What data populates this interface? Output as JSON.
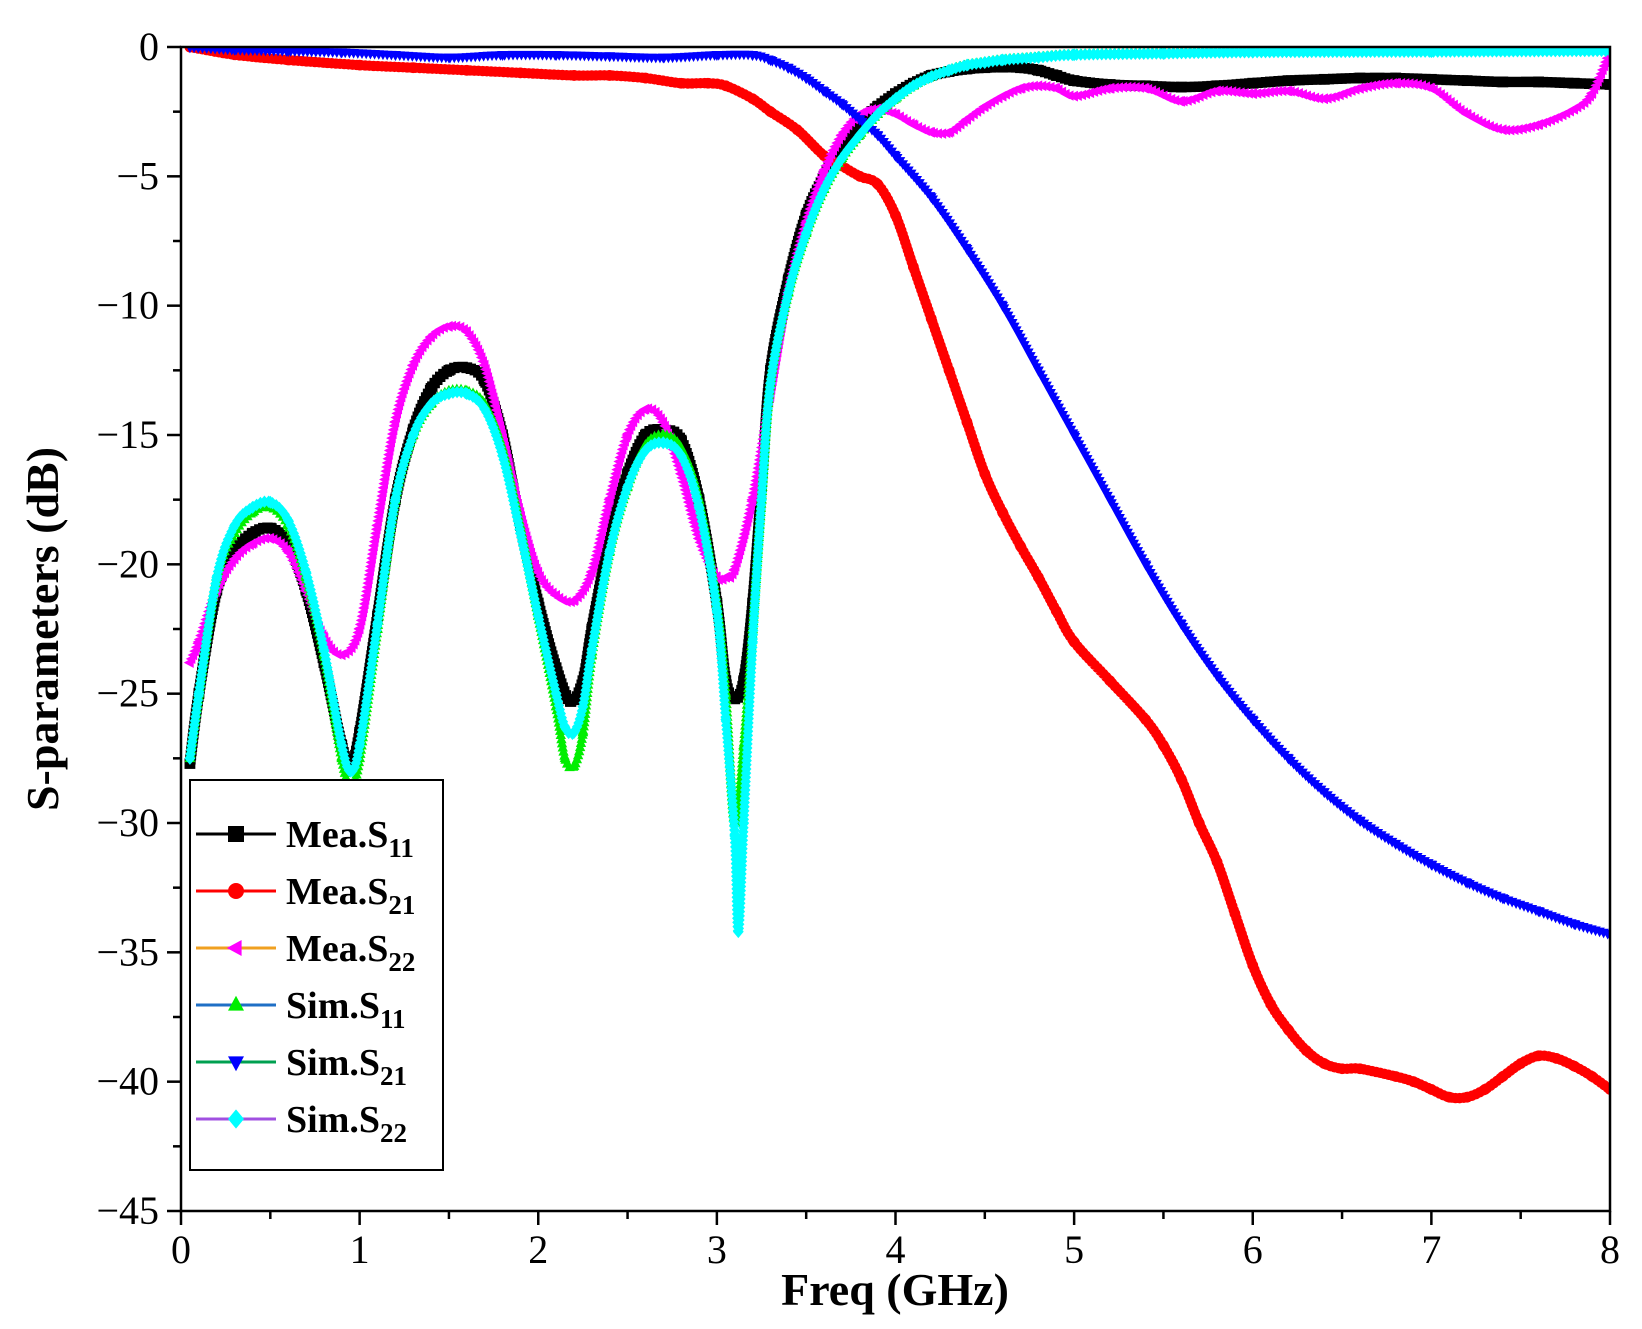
{
  "chart_data": {
    "type": "line",
    "title": "",
    "xlabel": "Freq (GHz)",
    "ylabel": "S-parameters (dB)",
    "xlim": [
      0,
      8
    ],
    "ylim": [
      -45,
      0
    ],
    "xticks": [
      0,
      1,
      2,
      3,
      4,
      5,
      6,
      7,
      8
    ],
    "yticks": [
      0,
      -5,
      -10,
      -15,
      -20,
      -25,
      -30,
      -35,
      -40,
      -45
    ],
    "xtick_labels": [
      "0",
      "1",
      "2",
      "3",
      "4",
      "5",
      "6",
      "7",
      "8"
    ],
    "ytick_labels": [
      "0",
      "−5",
      "−10",
      "−15",
      "−20",
      "−25",
      "−30",
      "−35",
      "−40",
      "−45"
    ],
    "grid": false,
    "legend_position": "bottom-left",
    "series": [
      {
        "name": "Mea.S11",
        "label_main": "Mea.S",
        "label_sub": "11",
        "line_color": "#000000",
        "marker_color": "#000000",
        "marker": "square",
        "x": [
          0.05,
          0.1,
          0.2,
          0.3,
          0.4,
          0.5,
          0.6,
          0.7,
          0.8,
          0.9,
          0.95,
          1.0,
          1.1,
          1.2,
          1.3,
          1.4,
          1.5,
          1.6,
          1.7,
          1.8,
          1.9,
          2.0,
          2.1,
          2.18,
          2.25,
          2.3,
          2.4,
          2.5,
          2.6,
          2.7,
          2.8,
          2.9,
          3.0,
          3.05,
          3.1,
          3.15,
          3.2,
          3.25,
          3.3,
          3.4,
          3.5,
          3.6,
          3.7,
          3.8,
          3.9,
          4.0,
          4.1,
          4.2,
          4.3,
          4.4,
          4.5,
          4.6,
          4.7,
          4.8,
          4.9,
          5.0,
          5.2,
          5.4,
          5.6,
          5.8,
          6.0,
          6.2,
          6.4,
          6.6,
          6.8,
          7.0,
          7.2,
          7.4,
          7.6,
          7.8,
          8.0
        ],
        "y": [
          -27.7,
          -25,
          -21,
          -19.5,
          -18.8,
          -18.6,
          -19.2,
          -21,
          -23.8,
          -27,
          -27.8,
          -26.5,
          -22,
          -17.5,
          -14.8,
          -13.2,
          -12.5,
          -12.4,
          -12.9,
          -15,
          -18.5,
          -21.5,
          -24,
          -25.3,
          -24.5,
          -22.5,
          -19,
          -16.5,
          -15,
          -14.8,
          -15.2,
          -17.5,
          -21.5,
          -24.5,
          -25.2,
          -24.5,
          -21.5,
          -17,
          -12.5,
          -9,
          -6.5,
          -5,
          -3.8,
          -2.9,
          -2.3,
          -1.8,
          -1.4,
          -1.1,
          -0.95,
          -0.85,
          -0.8,
          -0.78,
          -0.8,
          -0.9,
          -1.1,
          -1.3,
          -1.45,
          -1.5,
          -1.55,
          -1.5,
          -1.4,
          -1.3,
          -1.25,
          -1.2,
          -1.2,
          -1.25,
          -1.3,
          -1.35,
          -1.35,
          -1.4,
          -1.45
        ]
      },
      {
        "name": "Mea.S21",
        "label_main": "Mea.S",
        "label_sub": "21",
        "line_color": "#ff0000",
        "marker_color": "#ff0000",
        "marker": "circle",
        "x": [
          0.05,
          0.3,
          0.6,
          1.0,
          1.3,
          1.6,
          1.9,
          2.2,
          2.4,
          2.6,
          2.8,
          2.95,
          3.05,
          3.2,
          3.3,
          3.45,
          3.6,
          3.7,
          3.8,
          3.9,
          4.0,
          4.1,
          4.2,
          4.3,
          4.4,
          4.5,
          4.6,
          4.7,
          4.8,
          4.9,
          5.0,
          5.2,
          5.4,
          5.5,
          5.6,
          5.7,
          5.8,
          5.9,
          6.0,
          6.1,
          6.2,
          6.3,
          6.4,
          6.5,
          6.6,
          6.8,
          6.9,
          7.0,
          7.1,
          7.2,
          7.3,
          7.4,
          7.5,
          7.6,
          7.7,
          7.8,
          7.9,
          8.0
        ],
        "y": [
          0,
          -0.3,
          -0.5,
          -0.7,
          -0.8,
          -0.9,
          -1.0,
          -1.1,
          -1.1,
          -1.2,
          -1.4,
          -1.4,
          -1.5,
          -2,
          -2.5,
          -3.2,
          -4.2,
          -4.6,
          -5,
          -5.3,
          -6.5,
          -8.5,
          -10.5,
          -12.5,
          -14.5,
          -16.5,
          -18,
          -19.3,
          -20.5,
          -21.8,
          -23,
          -24.5,
          -26,
          -27,
          -28.3,
          -30,
          -31.5,
          -33.5,
          -35.5,
          -37,
          -38,
          -38.8,
          -39.3,
          -39.5,
          -39.5,
          -39.8,
          -40,
          -40.3,
          -40.6,
          -40.6,
          -40.3,
          -39.8,
          -39.3,
          -39.0,
          -39.1,
          -39.4,
          -39.8,
          -40.3
        ]
      },
      {
        "name": "Mea.S22",
        "label_main": "Mea.S",
        "label_sub": "22",
        "line_color": "#f0a020",
        "marker_color": "#ff00ff",
        "marker": "triangle-left",
        "x": [
          0.05,
          0.1,
          0.2,
          0.3,
          0.4,
          0.5,
          0.6,
          0.7,
          0.8,
          0.9,
          1.0,
          1.1,
          1.2,
          1.3,
          1.4,
          1.5,
          1.6,
          1.7,
          1.8,
          1.9,
          2.0,
          2.1,
          2.2,
          2.3,
          2.4,
          2.5,
          2.6,
          2.7,
          2.8,
          2.9,
          3.0,
          3.05,
          3.1,
          3.2,
          3.3,
          3.4,
          3.5,
          3.6,
          3.7,
          3.8,
          3.9,
          4.0,
          4.1,
          4.2,
          4.3,
          4.4,
          4.5,
          4.6,
          4.7,
          4.8,
          4.9,
          5.0,
          5.2,
          5.4,
          5.6,
          5.8,
          6.0,
          6.2,
          6.4,
          6.6,
          6.8,
          7.0,
          7.2,
          7.4,
          7.6,
          7.8,
          7.9,
          8.0
        ],
        "y": [
          -23.8,
          -23,
          -21,
          -19.8,
          -19.2,
          -19.0,
          -19.5,
          -21,
          -22.8,
          -23.5,
          -22.5,
          -18.5,
          -14.5,
          -12.3,
          -11.2,
          -10.8,
          -11.0,
          -12.3,
          -15,
          -18,
          -20.3,
          -21.2,
          -21.4,
          -20.3,
          -17.5,
          -15,
          -14.0,
          -14.5,
          -16.5,
          -19,
          -20.5,
          -20.5,
          -20.2,
          -17.5,
          -13.5,
          -9.5,
          -6.8,
          -4.8,
          -3.4,
          -2.6,
          -2.4,
          -2.6,
          -3.0,
          -3.3,
          -3.3,
          -2.8,
          -2.3,
          -1.9,
          -1.6,
          -1.5,
          -1.6,
          -1.9,
          -1.6,
          -1.6,
          -2.1,
          -1.7,
          -1.8,
          -1.7,
          -2.0,
          -1.6,
          -1.4,
          -1.6,
          -2.6,
          -3.2,
          -3.0,
          -2.4,
          -1.8,
          -0.2
        ]
      },
      {
        "name": "Sim.S11",
        "label_main": "Sim.S",
        "label_sub": "11",
        "line_color": "#1f6fc5",
        "marker_color": "#00ee00",
        "marker": "triangle-up",
        "x": [
          0.05,
          0.1,
          0.2,
          0.3,
          0.4,
          0.5,
          0.6,
          0.7,
          0.8,
          0.9,
          0.95,
          1.0,
          1.1,
          1.2,
          1.3,
          1.4,
          1.5,
          1.6,
          1.7,
          1.8,
          1.9,
          2.0,
          2.1,
          2.15,
          2.2,
          2.25,
          2.3,
          2.4,
          2.5,
          2.6,
          2.7,
          2.8,
          2.9,
          3.0,
          3.05,
          3.1,
          3.15,
          3.2,
          3.25,
          3.3,
          3.4,
          3.5,
          3.6,
          3.7,
          3.8,
          3.9,
          4.0,
          4.1,
          4.2,
          4.3,
          4.4,
          4.5,
          4.6,
          4.8,
          5.0,
          5.5,
          6.0,
          7.0,
          8.0
        ],
        "y": [
          -27.5,
          -25,
          -20.5,
          -18.8,
          -18.0,
          -17.8,
          -18.5,
          -20.5,
          -23.5,
          -27.5,
          -28.6,
          -27.5,
          -22.5,
          -17.5,
          -15,
          -13.8,
          -13.3,
          -13.3,
          -13.8,
          -15.5,
          -18.5,
          -22,
          -25.5,
          -27.5,
          -27.8,
          -26.5,
          -23.5,
          -19.5,
          -17,
          -15.4,
          -15.0,
          -15.5,
          -17.5,
          -21.5,
          -25,
          -30,
          -27,
          -22.5,
          -17.5,
          -13,
          -9.5,
          -7.2,
          -5.5,
          -4.3,
          -3.4,
          -2.6,
          -2.0,
          -1.5,
          -1.15,
          -0.9,
          -0.7,
          -0.6,
          -0.5,
          -0.4,
          -0.3,
          -0.25,
          -0.2,
          -0.18,
          -0.15
        ]
      },
      {
        "name": "Sim.S21",
        "label_main": "Sim.S",
        "label_sub": "21",
        "line_color": "#00a050",
        "marker_color": "#0000ff",
        "marker": "triangle-down",
        "x": [
          0.05,
          0.3,
          0.6,
          0.9,
          1.2,
          1.5,
          1.8,
          2.1,
          2.4,
          2.7,
          3.0,
          3.2,
          3.3,
          3.4,
          3.5,
          3.6,
          3.7,
          3.8,
          3.9,
          4.0,
          4.2,
          4.4,
          4.6,
          4.8,
          5.0,
          5.2,
          5.4,
          5.6,
          5.8,
          6.0,
          6.2,
          6.4,
          6.6,
          6.8,
          7.0,
          7.2,
          7.4,
          7.6,
          7.8,
          8.0
        ],
        "y": [
          0,
          -0.1,
          -0.15,
          -0.2,
          -0.3,
          -0.4,
          -0.3,
          -0.3,
          -0.35,
          -0.4,
          -0.3,
          -0.3,
          -0.5,
          -0.8,
          -1.2,
          -1.7,
          -2.2,
          -2.8,
          -3.4,
          -4.2,
          -5.8,
          -7.8,
          -10,
          -12.5,
          -15,
          -17.5,
          -20,
          -22.3,
          -24.3,
          -26,
          -27.5,
          -28.8,
          -29.9,
          -30.8,
          -31.6,
          -32.3,
          -32.9,
          -33.4,
          -33.9,
          -34.3
        ]
      },
      {
        "name": "Sim.S22",
        "label_main": "Sim.S",
        "label_sub": "22",
        "line_color": "#a050e0",
        "marker_color": "#00ffff",
        "marker": "diamond",
        "x": [
          0.05,
          0.1,
          0.2,
          0.3,
          0.4,
          0.5,
          0.6,
          0.7,
          0.8,
          0.9,
          0.95,
          1.0,
          1.1,
          1.2,
          1.3,
          1.4,
          1.5,
          1.6,
          1.7,
          1.8,
          1.9,
          2.0,
          2.1,
          2.15,
          2.2,
          2.25,
          2.3,
          2.4,
          2.5,
          2.6,
          2.7,
          2.8,
          2.9,
          3.0,
          3.05,
          3.1,
          3.12,
          3.15,
          3.2,
          3.25,
          3.3,
          3.4,
          3.5,
          3.6,
          3.7,
          3.8,
          3.9,
          4.0,
          4.1,
          4.2,
          4.3,
          4.4,
          4.5,
          4.6,
          4.8,
          5.0,
          5.5,
          6.0,
          7.0,
          8.0
        ],
        "y": [
          -27.5,
          -25,
          -20.5,
          -18.5,
          -17.8,
          -17.6,
          -18.3,
          -20.3,
          -23.3,
          -27,
          -28.0,
          -27,
          -22.3,
          -17.5,
          -15,
          -13.8,
          -13.4,
          -13.4,
          -14,
          -15.8,
          -18.8,
          -22,
          -25,
          -26.3,
          -26.5,
          -25.5,
          -23.3,
          -19.5,
          -17,
          -15.6,
          -15.3,
          -15.8,
          -17.8,
          -21.8,
          -26,
          -30.5,
          -34.2,
          -30,
          -23,
          -17.5,
          -13,
          -9.5,
          -7.2,
          -5.5,
          -4.3,
          -3.4,
          -2.6,
          -2.0,
          -1.5,
          -1.15,
          -0.9,
          -0.7,
          -0.6,
          -0.5,
          -0.4,
          -0.3,
          -0.25,
          -0.2,
          -0.18,
          -0.15
        ]
      }
    ]
  }
}
